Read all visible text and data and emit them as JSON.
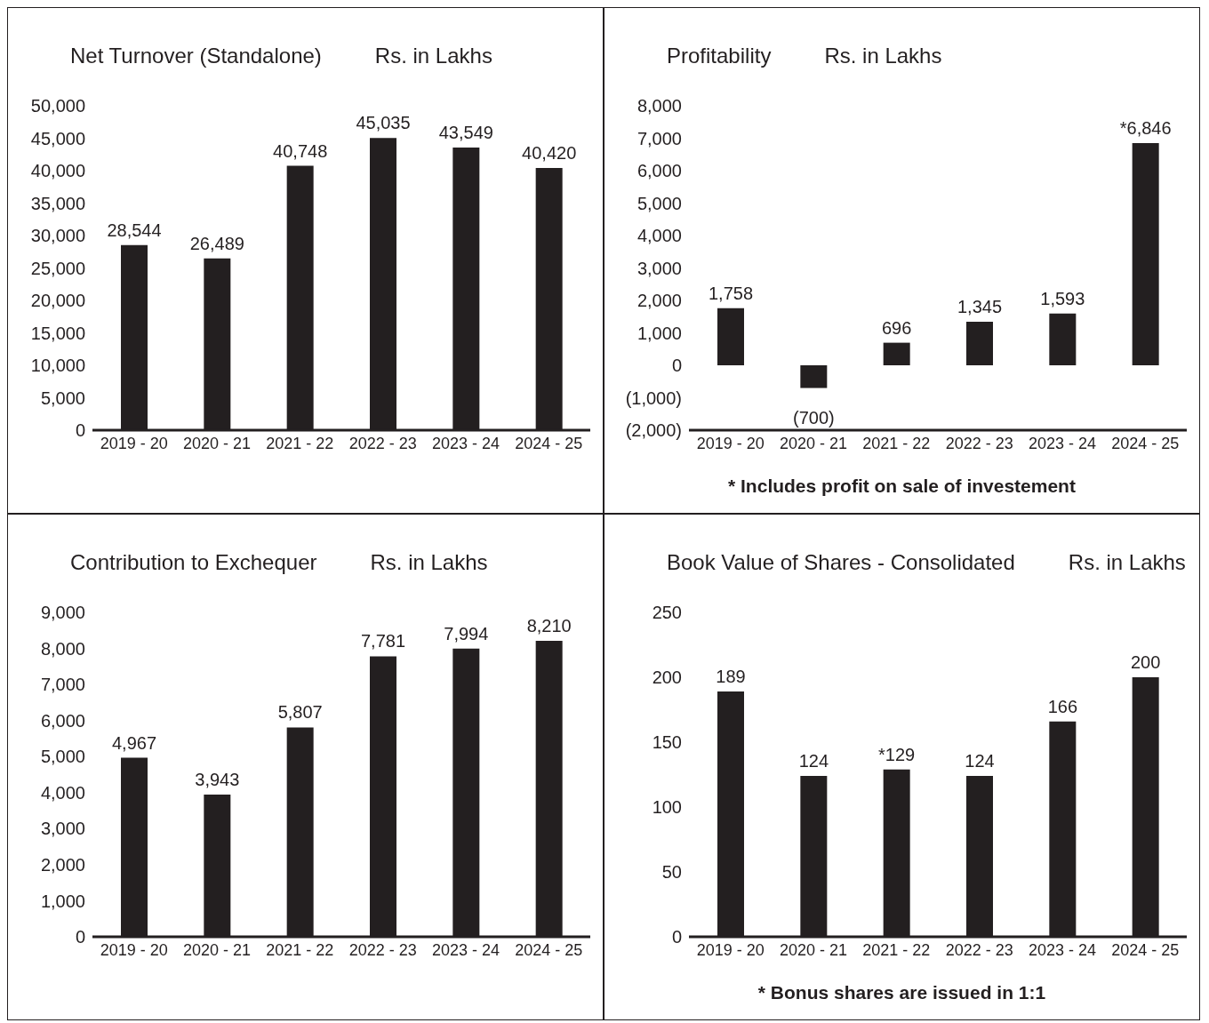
{
  "chart_data": [
    {
      "type": "bar",
      "title": "Net Turnover (Standalone)",
      "subtitle": "Rs. in Lakhs",
      "categories": [
        "2019 - 20",
        "2020 - 21",
        "2021 - 22",
        "2022 - 23",
        "2023 - 24",
        "2024 - 25"
      ],
      "values": [
        28544,
        26489,
        40748,
        45035,
        43549,
        40420
      ],
      "value_labels": [
        "28,544",
        "26,489",
        "40,748",
        "45,035",
        "43,549",
        "40,420"
      ],
      "color": "#231f20",
      "ylim": [
        0,
        50000
      ],
      "yticks": [
        0,
        {
          "value": 5000,
          "label": "5,000"
        },
        {
          "value": 10000,
          "label": "10,000"
        },
        {
          "value": 15000,
          "label": "15,000"
        },
        {
          "value": 20000,
          "label": "20,000"
        },
        {
          "value": 25000,
          "label": "25,000"
        },
        {
          "value": 30000,
          "label": "30,000"
        },
        {
          "value": 35000,
          "label": "35,000"
        },
        {
          "value": 40000,
          "label": "40,000"
        },
        {
          "value": 45000,
          "label": "45,000"
        },
        {
          "value": 50000,
          "label": "50,000"
        }
      ]
    },
    {
      "type": "bar",
      "title": "Profitability",
      "subtitle": "Rs. in Lakhs",
      "categories": [
        "2019 - 20",
        "2020 - 21",
        "2021 - 22",
        "2022 - 23",
        "2023 - 24",
        "2024 - 25"
      ],
      "values": [
        1758,
        -700,
        696,
        1345,
        1593,
        6846
      ],
      "value_labels": [
        "1,758",
        "(700)",
        "696",
        "1,345",
        "1,593",
        "*6,846"
      ],
      "color": "#231f20",
      "ylim": [
        -2000,
        8000
      ],
      "yticks": [
        {
          "value": -2000,
          "label": "(2,000)"
        },
        {
          "value": -1000,
          "label": "(1,000)"
        },
        0,
        {
          "value": 1000,
          "label": "1,000"
        },
        {
          "value": 2000,
          "label": "2,000"
        },
        {
          "value": 3000,
          "label": "3,000"
        },
        {
          "value": 4000,
          "label": "4,000"
        },
        {
          "value": 5000,
          "label": "5,000"
        },
        {
          "value": 6000,
          "label": "6,000"
        },
        {
          "value": 7000,
          "label": "7,000"
        },
        {
          "value": 8000,
          "label": "8,000"
        }
      ],
      "annotations": [
        "* Includes profit on sale of investement"
      ]
    },
    {
      "type": "bar",
      "title": "Contribution to Exchequer",
      "subtitle": "Rs. in Lakhs",
      "categories": [
        "2019 - 20",
        "2020 - 21",
        "2021 - 22",
        "2022 - 23",
        "2023 - 24",
        "2024 - 25"
      ],
      "values": [
        4967,
        3943,
        5807,
        7781,
        7994,
        8210
      ],
      "value_labels": [
        "4,967",
        "3,943",
        "5,807",
        "7,781",
        "7,994",
        "8,210"
      ],
      "color": "#231f20",
      "ylim": [
        0,
        9000
      ],
      "yticks": [
        0,
        {
          "value": 1000,
          "label": "1,000"
        },
        {
          "value": 2000,
          "label": "2,000"
        },
        {
          "value": 3000,
          "label": "3,000"
        },
        {
          "value": 4000,
          "label": "4,000"
        },
        {
          "value": 5000,
          "label": "5,000"
        },
        {
          "value": 6000,
          "label": "6,000"
        },
        {
          "value": 7000,
          "label": "7,000"
        },
        {
          "value": 8000,
          "label": "8,000"
        },
        {
          "value": 9000,
          "label": "9,000"
        }
      ]
    },
    {
      "type": "bar",
      "title": "Book Value of Shares - Consolidated",
      "subtitle": "Rs. in Lakhs",
      "categories": [
        "2019 - 20",
        "2020 - 21",
        "2021 - 22",
        "2022 - 23",
        "2023 - 24",
        "2024 - 25"
      ],
      "values": [
        189,
        124,
        129,
        124,
        166,
        200
      ],
      "value_labels": [
        "189",
        "124",
        "*129",
        "124",
        "166",
        "200"
      ],
      "color": "#231f20",
      "ylim": [
        0,
        250
      ],
      "yticks": [
        0,
        50,
        100,
        150,
        200,
        250
      ],
      "annotations": [
        "* Bonus shares are issued in 1:1"
      ]
    }
  ]
}
